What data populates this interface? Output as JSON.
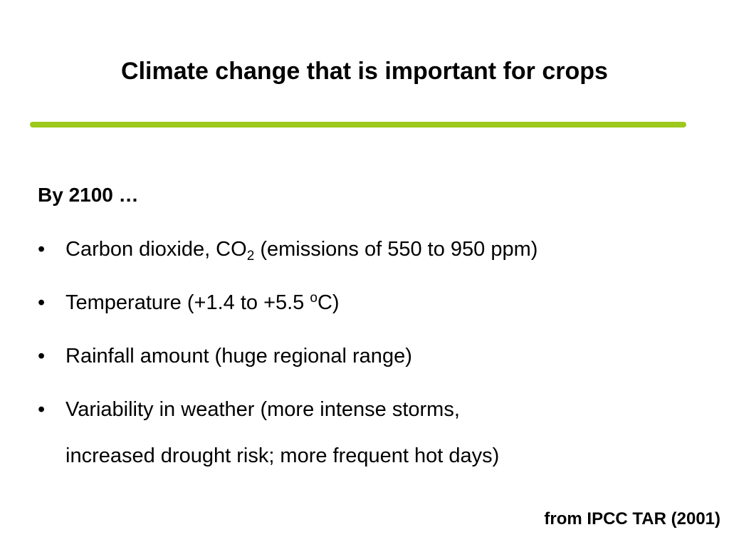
{
  "slide": {
    "title": "Climate change that is important for crops",
    "lead": "By 2100 …",
    "bullet_glyph": "•",
    "bullets": [
      {
        "pre": "Carbon dioxide, CO",
        "sub": "2",
        "post": " (emissions of 550 to 950 ppm)"
      },
      {
        "pre": "Temperature (+1.4 to +5.5 ",
        "sup": "o",
        "post": "C)"
      },
      {
        "text": "Rainfall amount (huge regional range)"
      },
      {
        "line1": "Variability in weather (more intense storms,",
        "line2": "increased drought risk; more frequent hot days)"
      }
    ],
    "source": "from IPCC TAR (2001)"
  },
  "colors": {
    "rule": "#9dc81c",
    "text": "#000000",
    "background": "#ffffff"
  }
}
